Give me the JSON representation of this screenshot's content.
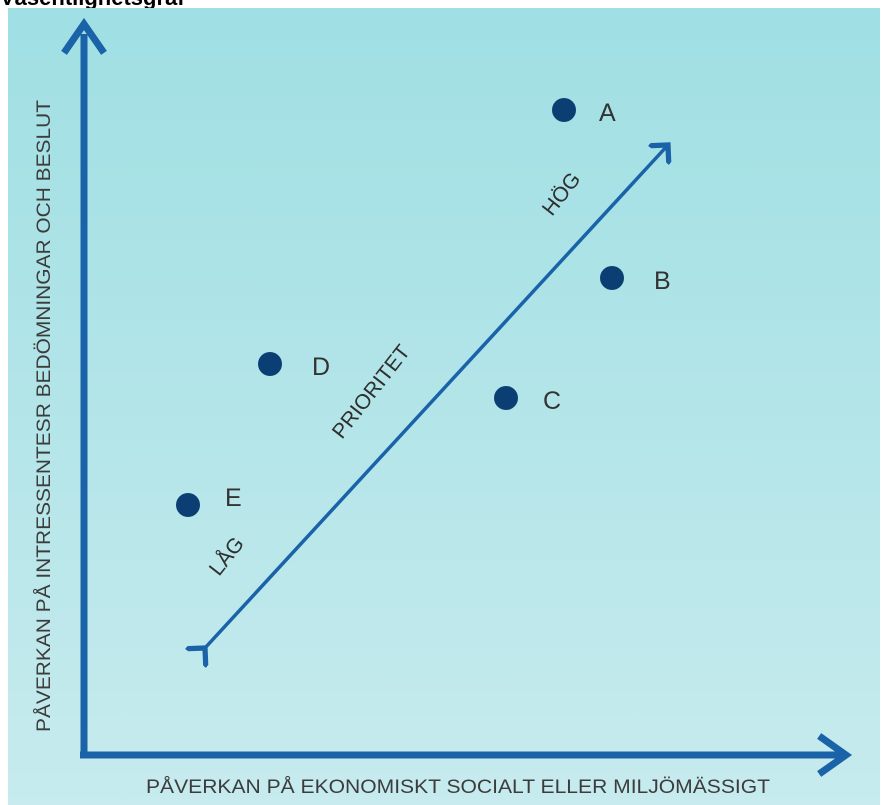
{
  "header": {
    "title": "Väsentlighetsgraf"
  },
  "diagram": {
    "y_axis_label": "PÅVERKAN PÅ INTRESSENTESR BEDÖMNINGAR OCH BESLUT",
    "x_axis_label": "PÅVERKAN PÅ EKONOMISKT  SOCIALT ELLER  MILJÖMÄSSIGT",
    "priority_label": "PRIORITET",
    "high_label": "HÖG",
    "low_label": "LÅG",
    "points": [
      {
        "label": "A"
      },
      {
        "label": "B"
      },
      {
        "label": "C"
      },
      {
        "label": "D"
      },
      {
        "label": "E"
      }
    ],
    "colors": {
      "axis": "#1a63a8",
      "dot": "#0b3f73",
      "panel_top": "#9fdfe3",
      "panel_bottom": "#c7ebee"
    }
  }
}
